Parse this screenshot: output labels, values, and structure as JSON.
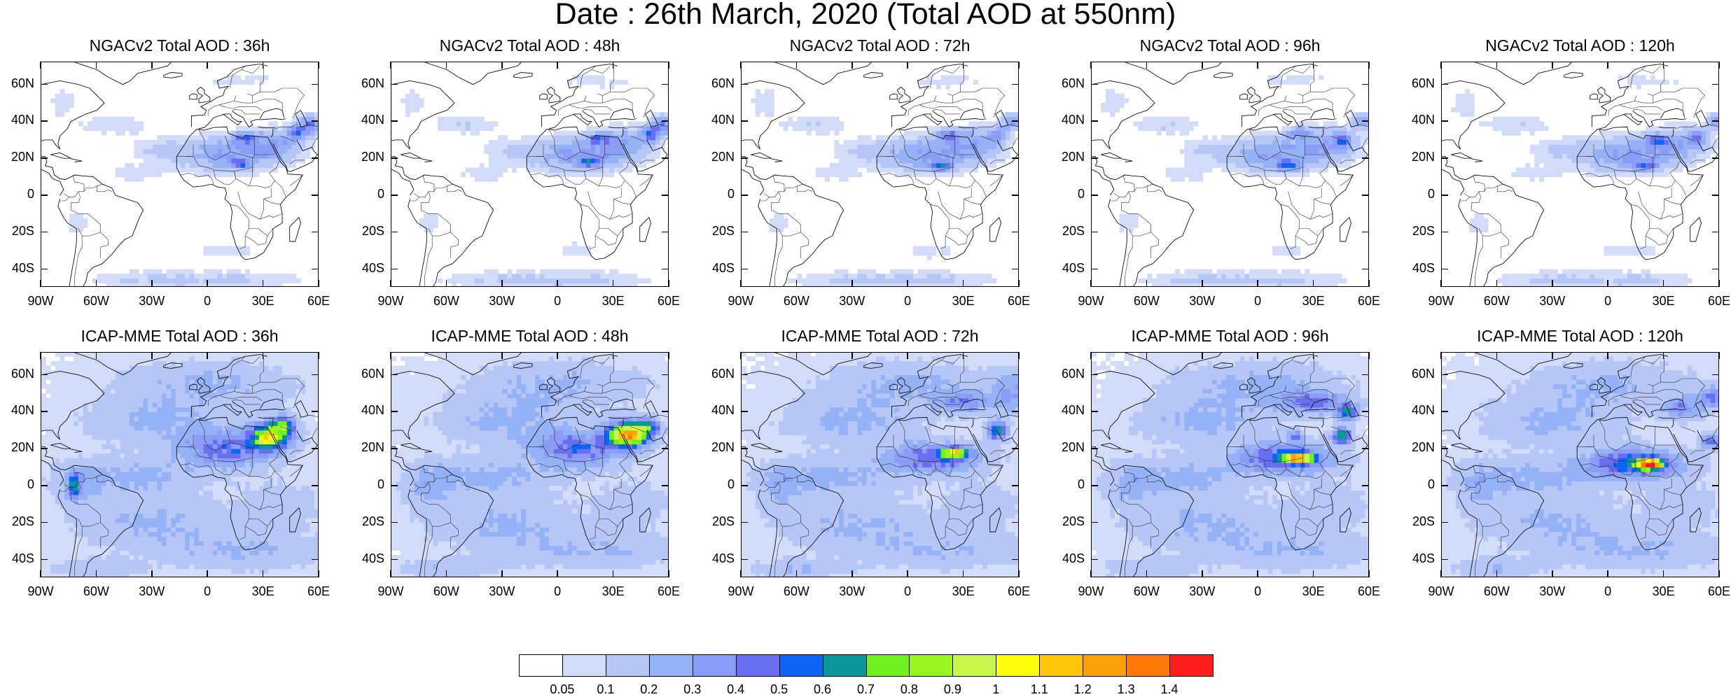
{
  "title": "Date : 26th March, 2020 (Total AOD at 550nm)",
  "lat_labels": [
    "60N",
    "40N",
    "20N",
    "0",
    "20S",
    "40S"
  ],
  "lon_labels": [
    "90W",
    "60W",
    "30W",
    "0",
    "30E",
    "60E"
  ],
  "panels": [
    {
      "title": "NGACv2 Total AOD : 36h",
      "model": "NGACv2",
      "hour": 36
    },
    {
      "title": "NGACv2 Total AOD : 48h",
      "model": "NGACv2",
      "hour": 48
    },
    {
      "title": "NGACv2 Total AOD : 72h",
      "model": "NGACv2",
      "hour": 72
    },
    {
      "title": "NGACv2 Total AOD : 96h",
      "model": "NGACv2",
      "hour": 96
    },
    {
      "title": "NGACv2 Total AOD : 120h",
      "model": "NGACv2",
      "hour": 120
    },
    {
      "title": "ICAP-MME Total AOD : 36h",
      "model": "ICAP-MME",
      "hour": 36
    },
    {
      "title": "ICAP-MME Total AOD : 48h",
      "model": "ICAP-MME",
      "hour": 48
    },
    {
      "title": "ICAP-MME Total AOD : 72h",
      "model": "ICAP-MME",
      "hour": 72
    },
    {
      "title": "ICAP-MME Total AOD : 96h",
      "model": "ICAP-MME",
      "hour": 96
    },
    {
      "title": "ICAP-MME Total AOD : 120h",
      "model": "ICAP-MME",
      "hour": 120
    }
  ],
  "colorbar": {
    "labels": [
      "0.05",
      "0.1",
      "0.2",
      "0.3",
      "0.4",
      "0.5",
      "0.6",
      "0.7",
      "0.8",
      "0.9",
      "1",
      "1.1",
      "1.2",
      "1.3",
      "1.4"
    ],
    "colors": [
      "#ffffff",
      "#d2dcf9",
      "#b6c6f6",
      "#96b2f6",
      "#8a9cf6",
      "#6a6ef0",
      "#0a64f6",
      "#0a969a",
      "#70f01e",
      "#98f41e",
      "#c8f64a",
      "#fefe0a",
      "#fec60a",
      "#fea00a",
      "#fe7a0a",
      "#fe1e1e"
    ]
  }
}
